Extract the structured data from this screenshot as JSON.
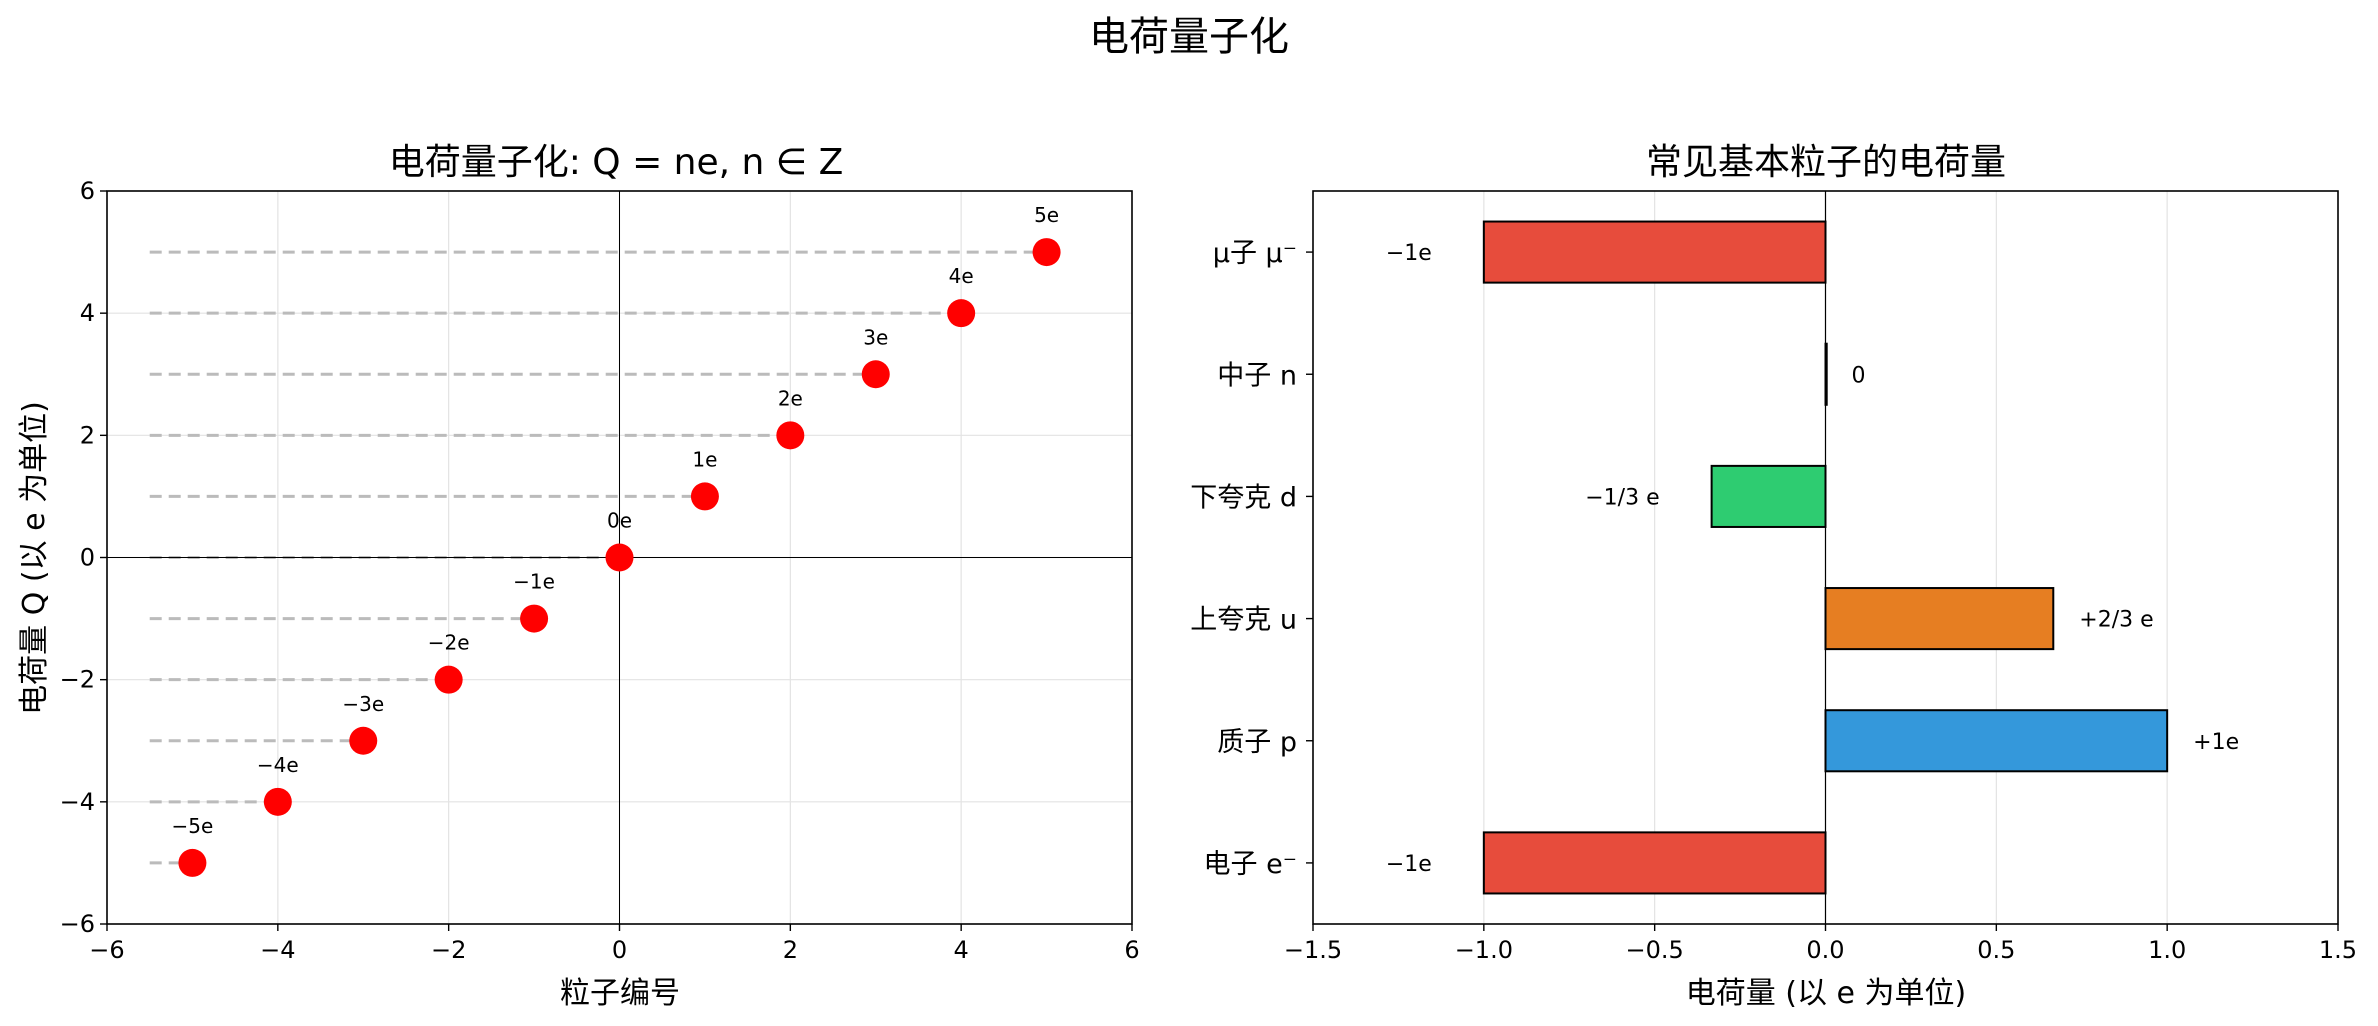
{
  "figure": {
    "suptitle": "电荷量子化"
  },
  "chart_data": [
    {
      "type": "scatter",
      "title": "电荷量子化: Q = ne, n ∈ Z",
      "xlabel": "粒子编号",
      "ylabel": "电荷量 Q (以 e 为单位)",
      "xlim": [
        -6,
        6
      ],
      "ylim": [
        -6,
        6
      ],
      "xticks": [
        -6,
        -4,
        -2,
        0,
        2,
        4,
        6
      ],
      "yticks": [
        -6,
        -4,
        -2,
        0,
        2,
        4,
        6
      ],
      "xtick_labels": [
        "−6",
        "−4",
        "−2",
        "0",
        "2",
        "4",
        "6"
      ],
      "ytick_labels": [
        "−6",
        "−4",
        "−2",
        "0",
        "2",
        "4",
        "6"
      ],
      "grid": true,
      "x": [
        -5,
        -4,
        -3,
        -2,
        -1,
        0,
        1,
        2,
        3,
        4,
        5
      ],
      "y": [
        -5,
        -4,
        -3,
        -2,
        -1,
        0,
        1,
        2,
        3,
        4,
        5
      ],
      "point_labels": [
        "−5e",
        "−4e",
        "−3e",
        "−2e",
        "−1e",
        "0e",
        "1e",
        "2e",
        "3e",
        "4e",
        "5e"
      ],
      "guide_lines_start_x": -5.5,
      "marker_color": "#ff0000",
      "guide_color": "#bbbbbb"
    },
    {
      "type": "bar",
      "orientation": "horizontal",
      "title": "常见基本粒子的电荷量",
      "xlabel": "电荷量 (以 e 为单位)",
      "ylabel": "",
      "xlim": [
        -1.5,
        1.5
      ],
      "xticks": [
        -1.5,
        -1.0,
        -0.5,
        0.0,
        0.5,
        1.0,
        1.5
      ],
      "xtick_labels": [
        "−1.5",
        "−1.0",
        "−0.5",
        "0.0",
        "0.5",
        "1.0",
        "1.5"
      ],
      "grid": true,
      "categories": [
        "电子 e⁻",
        "质子 p",
        "上夸克 u",
        "下夸克 d",
        "中子 n",
        "μ子 μ⁻"
      ],
      "values": [
        -1,
        1,
        0.6667,
        -0.3333,
        0,
        -1
      ],
      "value_labels": [
        "−1e",
        "+1e",
        "+2/3 e",
        "−1/3 e",
        "0",
        "−1e"
      ],
      "colors": [
        "#e74c3c",
        "#3498db",
        "#e67e22",
        "#2ecc71",
        "#95a5a6",
        "#e74c3c"
      ]
    }
  ]
}
